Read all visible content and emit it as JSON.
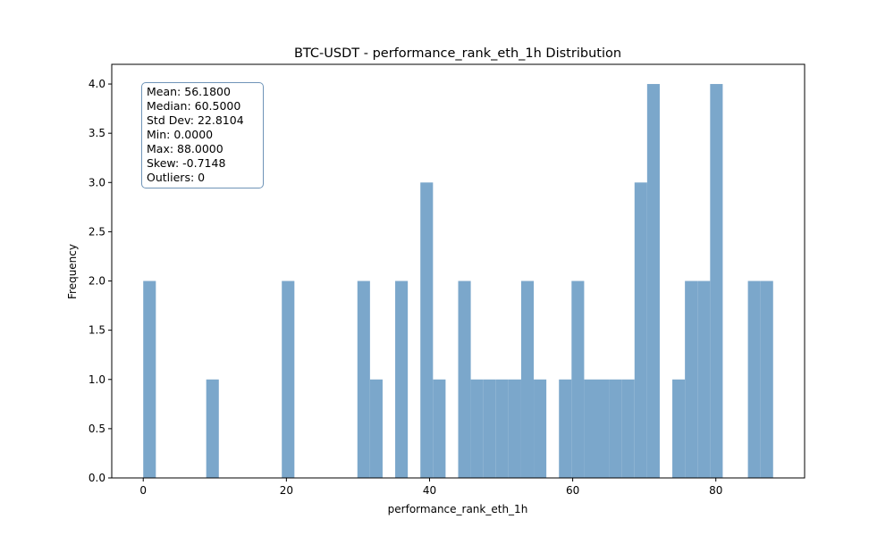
{
  "chart_data": {
    "type": "bar",
    "title": "BTC-USDT - performance_rank_eth_1h Distribution",
    "xlabel": "performance_rank_eth_1h",
    "ylabel": "Frequency",
    "xlim": [
      -4.4,
      92.4
    ],
    "ylim": [
      0,
      4.2
    ],
    "xticks": [
      "0",
      "20",
      "40",
      "60",
      "80"
    ],
    "yticks": [
      "0.0",
      "0.5",
      "1.0",
      "1.5",
      "2.0",
      "2.5",
      "3.0",
      "3.5",
      "4.0"
    ],
    "bar_color": "#7ba7cb",
    "bin_width": 1.76,
    "bin_starts": [
      0.0,
      8.8,
      19.36,
      29.92,
      31.68,
      35.2,
      38.72,
      40.48,
      44.0,
      45.76,
      47.52,
      49.28,
      51.04,
      52.8,
      54.56,
      58.08,
      59.84,
      61.6,
      63.36,
      65.12,
      66.88,
      68.64,
      70.4,
      73.92,
      75.68,
      77.44,
      79.2,
      84.48,
      86.24
    ],
    "values": [
      2,
      1,
      2,
      2,
      1,
      2,
      3,
      1,
      2,
      1,
      1,
      1,
      1,
      2,
      1,
      1,
      2,
      1,
      1,
      1,
      1,
      3,
      4,
      1,
      2,
      2,
      4,
      2,
      2
    ],
    "grid": false,
    "legend": "none"
  },
  "stats": {
    "mean": "Mean: 56.1800",
    "median": "Median: 60.5000",
    "std": "Std Dev: 22.8104",
    "min": "Min: 0.0000",
    "max": "Max: 88.0000",
    "skew": "Skew: -0.7148",
    "outliers": "Outliers: 0"
  }
}
